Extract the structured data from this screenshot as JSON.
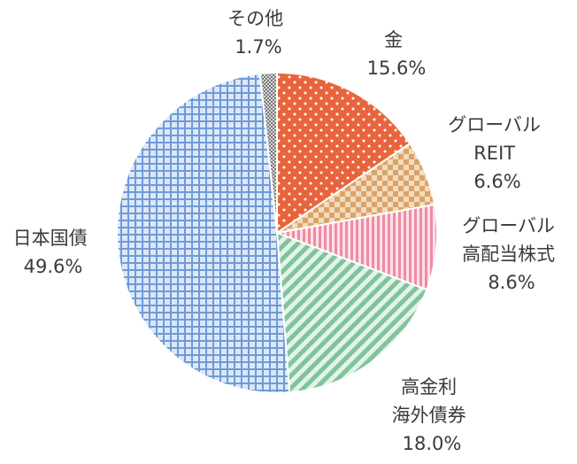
{
  "chart_data": {
    "type": "pie",
    "title": "",
    "start_angle_deg": 0,
    "direction": "clockwise",
    "slices": [
      {
        "name": "金",
        "label_lines": [
          "金"
        ],
        "value_label": "15.6%",
        "value": 15.6,
        "color": "#e8643c",
        "pattern": "dots"
      },
      {
        "name": "グローバルREIT",
        "label_lines": [
          "グローバル",
          "REIT"
        ],
        "value_label": "6.6%",
        "value": 6.6,
        "color": "#d9a36a",
        "pattern": "checker"
      },
      {
        "name": "グローバル高配当株式",
        "label_lines": [
          "グローバル",
          "高配当株式"
        ],
        "value_label": "8.6%",
        "value": 8.6,
        "color": "#ee8ca3",
        "pattern": "vertical-stripes"
      },
      {
        "name": "高金利海外債券",
        "label_lines": [
          "高金利",
          "海外債券"
        ],
        "value_label": "18.0%",
        "value": 18.0,
        "color": "#7fc49b",
        "pattern": "diagonal-stripes"
      },
      {
        "name": "日本国債",
        "label_lines": [
          "日本国債"
        ],
        "value_label": "49.6%",
        "value": 49.6,
        "color": "#6f9ad8",
        "pattern": "grid"
      },
      {
        "name": "その他",
        "label_lines": [
          "その他"
        ],
        "value_label": "1.7%",
        "value": 1.7,
        "color": "#8c8c8c",
        "pattern": "fine-dots"
      }
    ]
  }
}
